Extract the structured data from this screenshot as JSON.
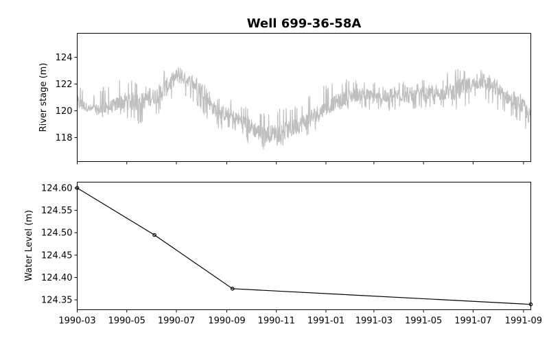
{
  "figure": {
    "title": "Well 699-36-58A"
  },
  "colors": {
    "stage_line": "#bfbfbf",
    "level_line": "#000000",
    "axes": "#000000"
  },
  "chart_data": [
    {
      "type": "line",
      "name": "river-stage-panel",
      "title": "Well 699-36-58A",
      "xlabel": "",
      "ylabel": "River stage (m)",
      "x_range": [
        "1990-03-01",
        "1991-09-10"
      ],
      "ylim": [
        116.2,
        125.8
      ],
      "yticks": [
        118,
        120,
        122,
        124
      ],
      "ytick_labels": [
        "118",
        "120",
        "122",
        "124"
      ],
      "series": [
        {
          "x": [
            "1990-03-01",
            "1990-03-15",
            "1990-04-01",
            "1990-04-15",
            "1990-05-01",
            "1990-05-15",
            "1990-06-01",
            "1990-06-15",
            "1990-07-01",
            "1990-07-15",
            "1990-08-01",
            "1990-08-15",
            "1990-09-01",
            "1990-09-15",
            "1990-10-01",
            "1990-10-15",
            "1990-11-01",
            "1990-11-15",
            "1990-12-01",
            "1990-12-15",
            "1991-01-01",
            "1991-01-15",
            "1991-02-01",
            "1991-02-15",
            "1991-03-01",
            "1991-03-15",
            "1991-04-01",
            "1991-04-15",
            "1991-05-01",
            "1991-05-15",
            "1991-06-01",
            "1991-06-15",
            "1991-07-01",
            "1991-07-15",
            "1991-08-01",
            "1991-08-15",
            "1991-09-01",
            "1991-09-10"
          ],
          "y": [
            120.6,
            120.2,
            120.0,
            120.4,
            120.8,
            120.6,
            121.0,
            121.5,
            122.6,
            122.3,
            121.6,
            120.2,
            119.7,
            119.4,
            118.8,
            118.2,
            118.4,
            118.5,
            119.0,
            119.5,
            120.2,
            120.7,
            121.1,
            121.3,
            121.0,
            120.9,
            121.2,
            121.0,
            121.3,
            121.2,
            121.4,
            121.6,
            122.0,
            122.2,
            121.5,
            120.9,
            120.3,
            119.4
          ],
          "min": [
            119.6,
            119.8,
            119.7,
            119.9,
            119.4,
            119.0,
            119.4,
            120.0,
            121.3,
            121.0,
            120.0,
            118.8,
            118.5,
            118.3,
            117.3,
            117.1,
            117.4,
            117.3,
            117.8,
            118.3,
            119.5,
            119.8,
            120.0,
            120.2,
            120.0,
            119.9,
            120.1,
            119.9,
            120.3,
            120.2,
            120.3,
            119.6,
            120.8,
            120.6,
            120.0,
            119.6,
            118.9,
            117.5
          ],
          "max": [
            122.3,
            120.9,
            121.8,
            122.1,
            122.5,
            122.0,
            122.0,
            123.2,
            123.6,
            123.0,
            122.5,
            121.2,
            121.0,
            120.5,
            120.2,
            119.8,
            120.1,
            120.2,
            120.5,
            121.5,
            121.9,
            122.2,
            122.4,
            122.3,
            122.3,
            121.7,
            122.3,
            122.0,
            122.4,
            122.1,
            122.9,
            123.2,
            123.0,
            123.1,
            122.5,
            121.9,
            121.5,
            120.5
          ]
        }
      ]
    },
    {
      "type": "line",
      "name": "water-level-panel",
      "xlabel": "",
      "ylabel": "Water Level (m)",
      "x_range": [
        "1990-03-01",
        "1991-09-10"
      ],
      "ylim": [
        124.328,
        124.613
      ],
      "xticks": [
        "1990-03-01",
        "1990-05-01",
        "1990-07-01",
        "1990-09-01",
        "1990-11-01",
        "1991-01-01",
        "1991-03-01",
        "1991-05-01",
        "1991-07-01",
        "1991-09-01"
      ],
      "xtick_labels": [
        "1990-03",
        "1990-05",
        "1990-07",
        "1990-09",
        "1990-11",
        "1991-01",
        "1991-03",
        "1991-05",
        "1991-07",
        "1991-09"
      ],
      "yticks": [
        124.35,
        124.4,
        124.45,
        124.5,
        124.55,
        124.6
      ],
      "ytick_labels": [
        "124.35",
        "124.40",
        "124.45",
        "124.50",
        "124.55",
        "124.60"
      ],
      "series": [
        {
          "x": [
            "1990-03-01",
            "1990-06-04",
            "1990-09-08",
            "1991-09-10"
          ],
          "y": [
            124.6,
            124.495,
            124.375,
            124.34
          ]
        }
      ]
    }
  ]
}
